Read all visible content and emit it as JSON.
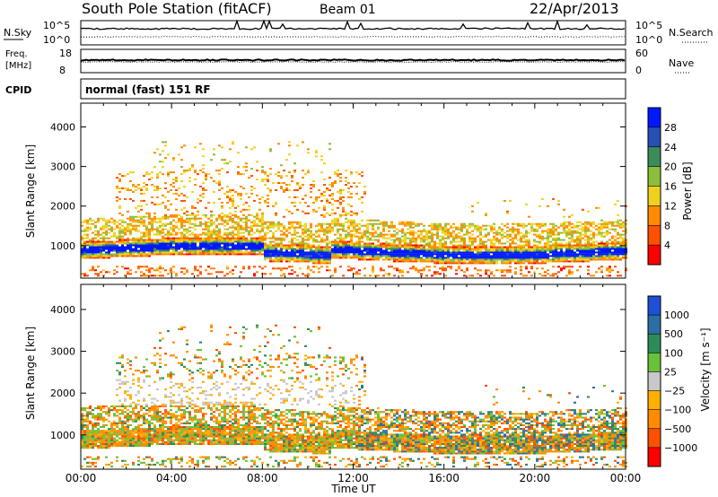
{
  "header": {
    "station": "South Pole Station (fitACF)",
    "beam": "Beam 01",
    "date": "22/Apr/2013"
  },
  "noise_panel": {
    "left_label": "N.Sky",
    "right_label": "N.Search",
    "left_ticks": [
      "10^5",
      "10^0"
    ],
    "right_ticks": [
      "10^5",
      "10^0"
    ]
  },
  "freq_panel": {
    "left_label_1": "Freq.",
    "left_label_2": "[MHz]",
    "left_ticks": [
      "18",
      "8"
    ],
    "right_label": "Nave",
    "right_ticks": [
      "60",
      "0"
    ]
  },
  "cpid": {
    "label": "CPID",
    "value": "normal (fast) 151 RF"
  },
  "chart_data": [
    {
      "type": "heatmap",
      "panel": "power",
      "ylabel": "Slant Range [km]",
      "xlabel": "Time UT",
      "x_ticks": [
        "00:00",
        "04:00",
        "08:00",
        "12:00",
        "16:00",
        "20:00",
        "00:00"
      ],
      "y_ticks": [
        "1000",
        "2000",
        "3000",
        "4000"
      ],
      "colorbar_label": "Power [dB]",
      "colorbar_ticks": [
        "4",
        "8",
        "12",
        "16",
        "20",
        "24",
        "28"
      ],
      "colorbar_colors": [
        "#0018ff",
        "#2850b4",
        "#3c8c5a",
        "#8cbe3c",
        "#f0d21e",
        "#ff8c00",
        "#ff5000",
        "#ff0000"
      ],
      "ylim": [
        180,
        4600
      ],
      "xlim_hours": [
        0,
        24
      ]
    },
    {
      "type": "heatmap",
      "panel": "velocity",
      "ylabel": "Slant Range [km]",
      "xlabel": "Time UT",
      "x_ticks": [
        "00:00",
        "04:00",
        "08:00",
        "12:00",
        "16:00",
        "20:00",
        "00:00"
      ],
      "y_ticks": [
        "1000",
        "2000",
        "3000",
        "4000"
      ],
      "colorbar_label": "Velocity [m s⁻¹]",
      "colorbar_ticks": [
        "1000",
        "500",
        "100",
        "25",
        "−25",
        "−100",
        "−500",
        "−1000"
      ],
      "colorbar_colors": [
        "#1f4fd4",
        "#2b6ea4",
        "#2f8a5a",
        "#67c23a",
        "#c8c8c8",
        "#ffb000",
        "#ff8c00",
        "#ff5000",
        "#ff0000"
      ],
      "ylim": [
        180,
        4600
      ],
      "xlim_hours": [
        0,
        24
      ]
    }
  ]
}
